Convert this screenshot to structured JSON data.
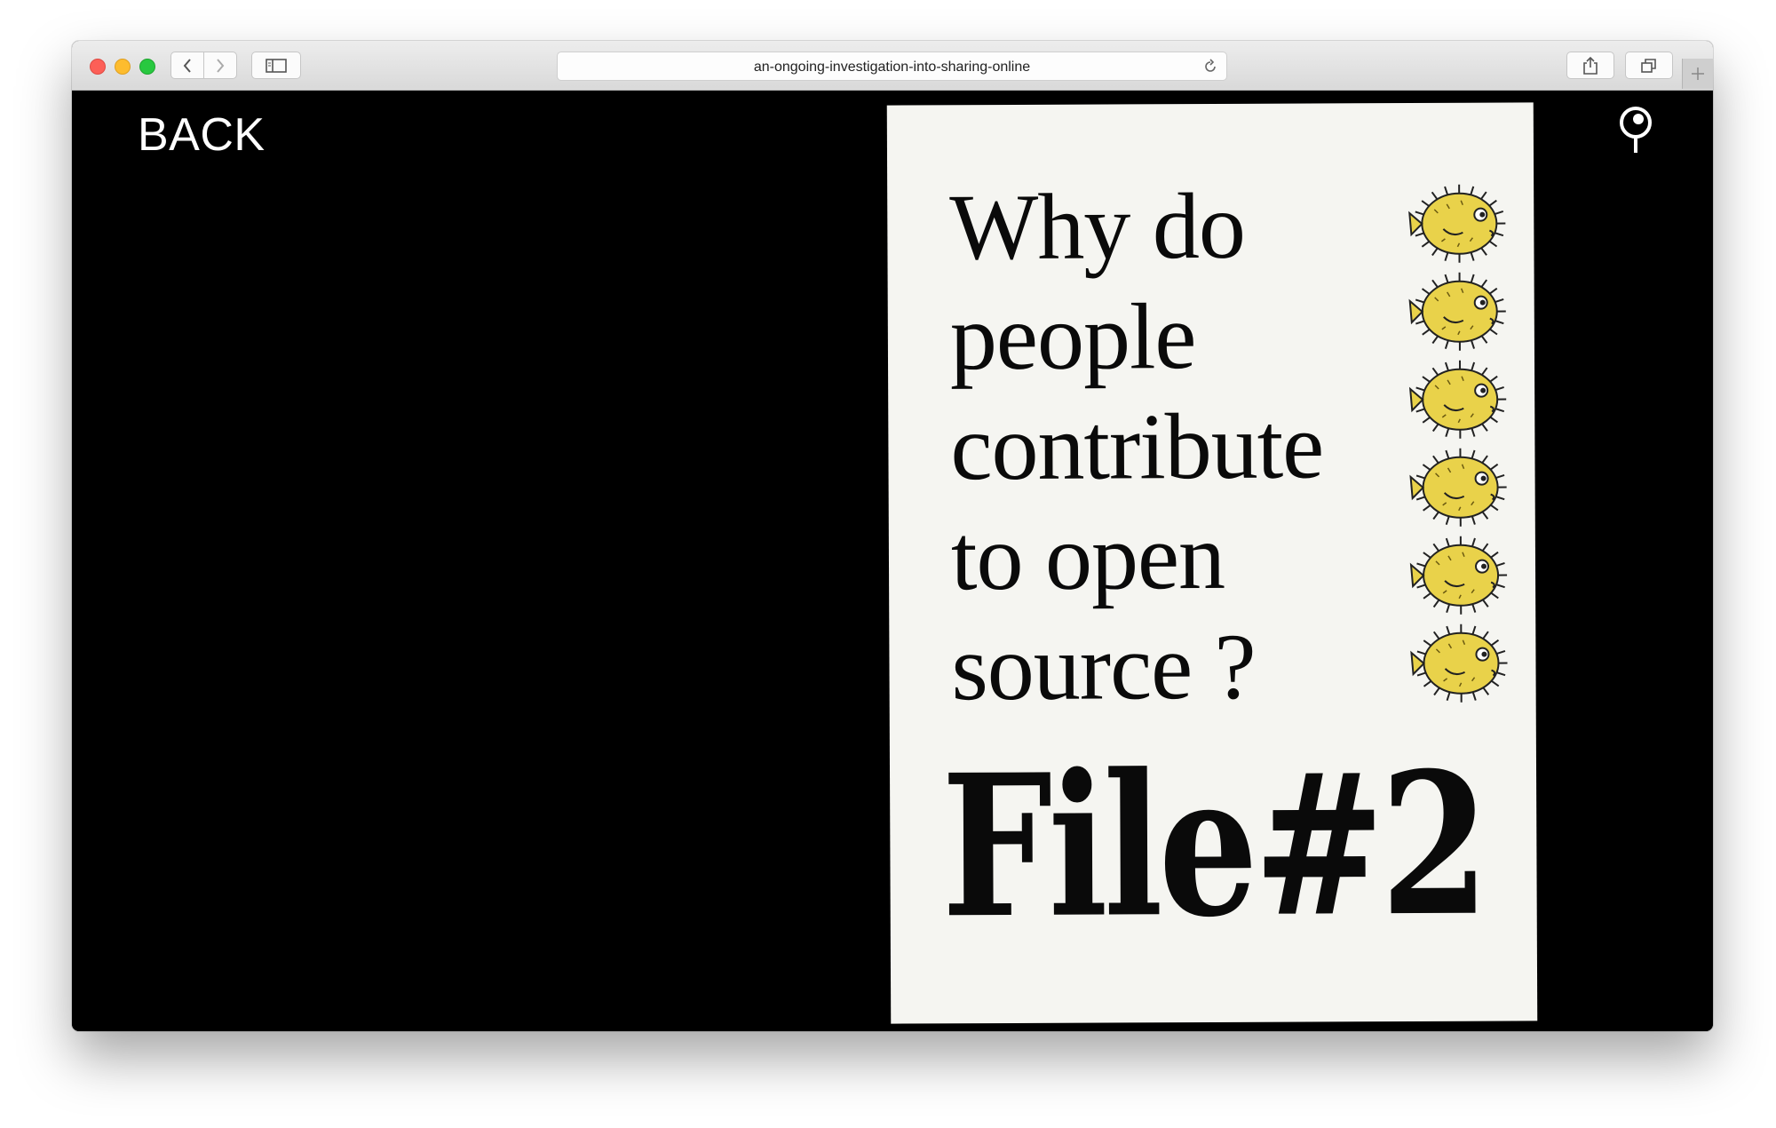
{
  "browser": {
    "url": "an-ongoing-investigation-into-sharing-online"
  },
  "page": {
    "back_label": "BACK",
    "cover": {
      "question_lines": "Why do\npeople\ncontribute\nto open\nsource ?",
      "title": "File#2",
      "fish_count": 6
    }
  },
  "colors": {
    "background": "#000000",
    "cover_paper": "#f5f5f1",
    "fish_yellow": "#e9d24a"
  },
  "icons": [
    "back-icon",
    "forward-icon",
    "sidebar-icon",
    "reload-icon",
    "share-icon",
    "tabs-icon",
    "plus-icon",
    "pin-icon",
    "blowfish-icon"
  ]
}
